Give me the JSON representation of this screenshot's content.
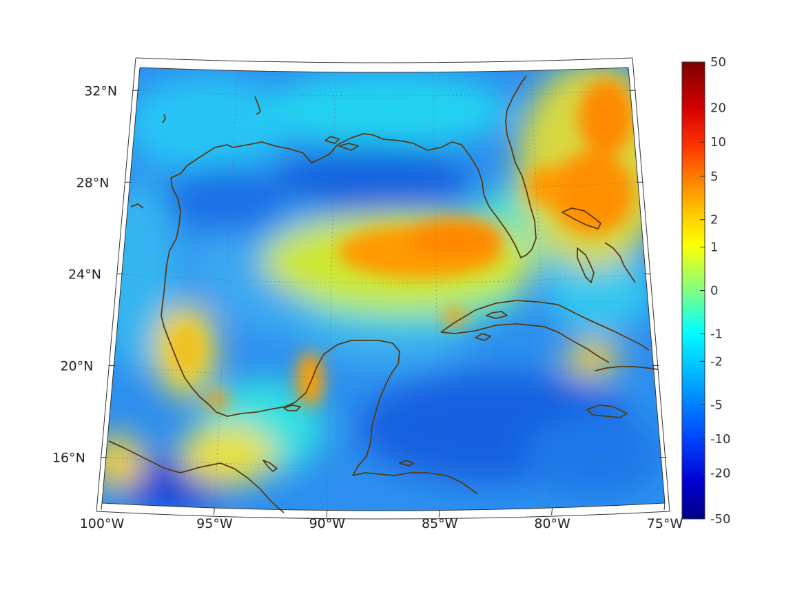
{
  "map": {
    "projection": "conic",
    "lon_range": [
      -100,
      -75
    ],
    "lat_range": [
      14,
      33
    ],
    "lon_ticks": [
      {
        "value": -100,
        "label": "100°W"
      },
      {
        "value": -95,
        "label": "95°W"
      },
      {
        "value": -90,
        "label": "90°W"
      },
      {
        "value": -85,
        "label": "85°W"
      },
      {
        "value": -80,
        "label": "80°W"
      },
      {
        "value": -75,
        "label": "75°W"
      }
    ],
    "lat_ticks": [
      {
        "value": 32,
        "label": "32°N"
      },
      {
        "value": 28,
        "label": "28°N"
      },
      {
        "value": 24,
        "label": "24°N"
      },
      {
        "value": 20,
        "label": "20°N"
      },
      {
        "value": 16,
        "label": "16°N"
      }
    ],
    "grid": true,
    "coastline_color": "#5a3a12",
    "ocean_base_color": "#1e8cf0",
    "colormap": "jet"
  },
  "colorbar": {
    "ticks": [
      "50",
      "20",
      "10",
      "5",
      "2",
      "1",
      "0",
      "-1",
      "-2",
      "-5",
      "-10",
      "-20",
      "-50"
    ],
    "placement": "right"
  }
}
